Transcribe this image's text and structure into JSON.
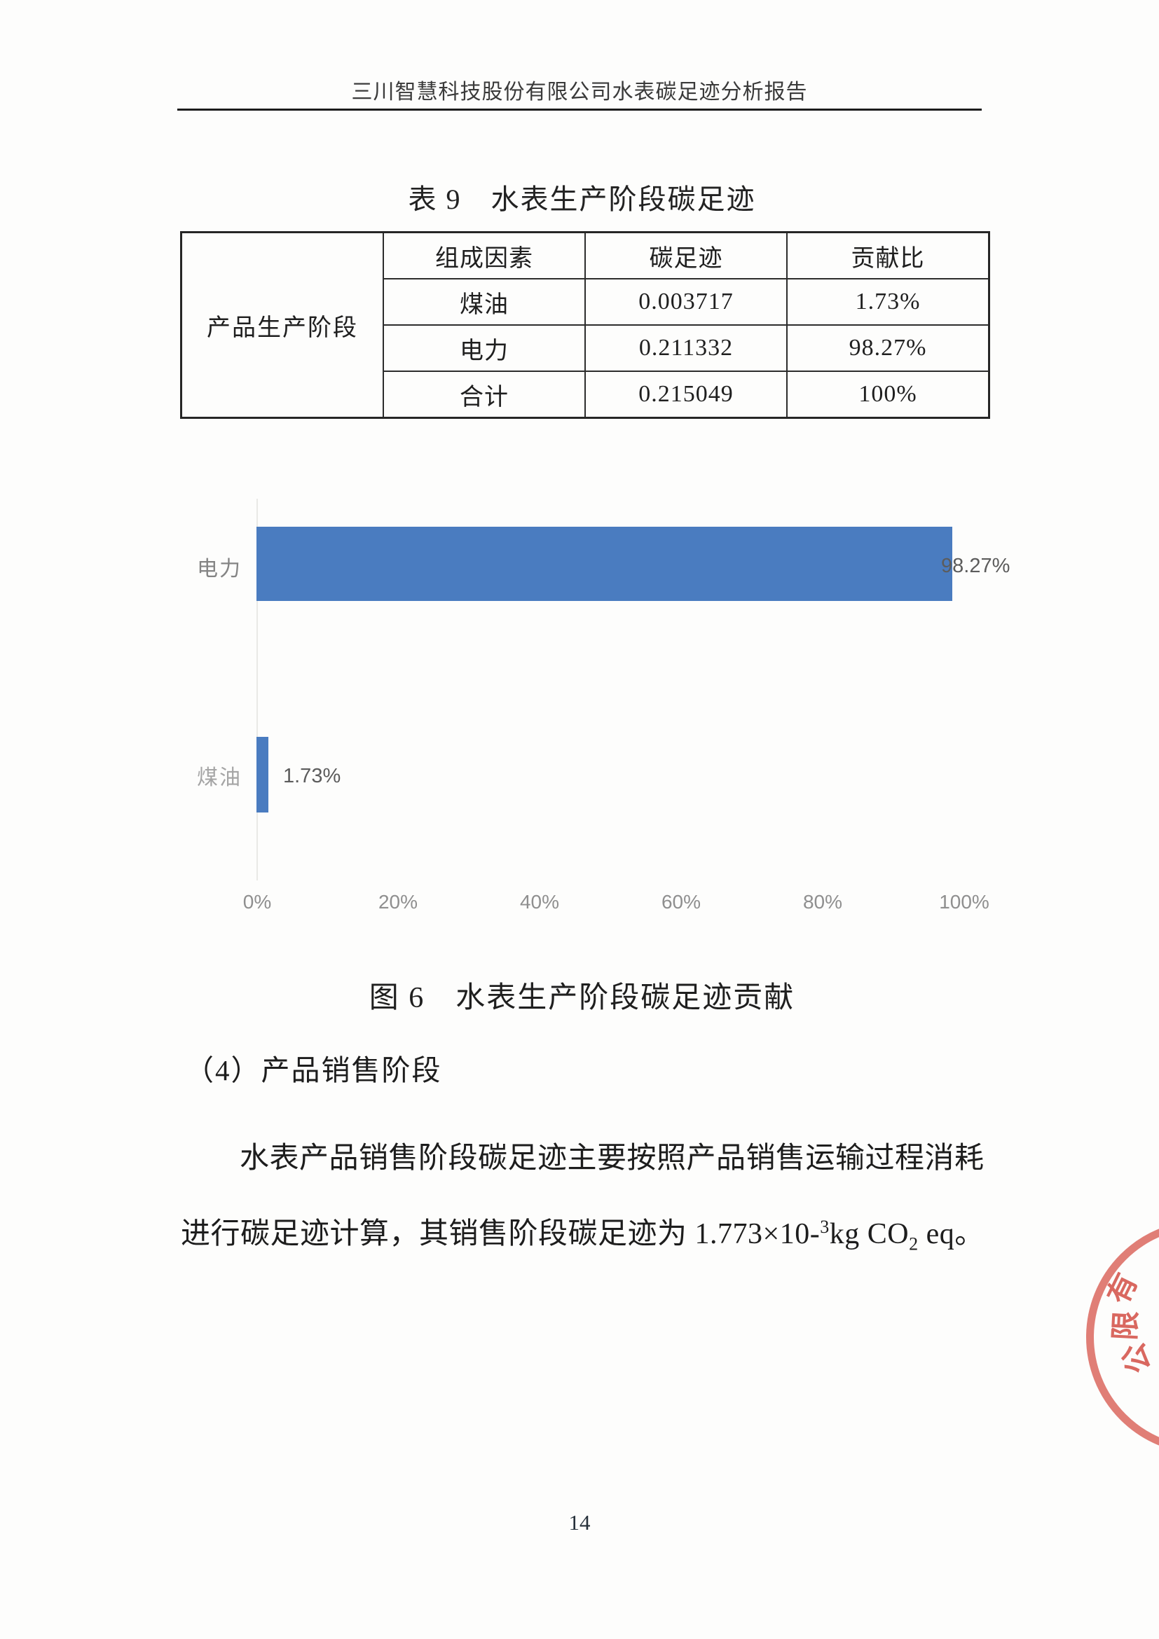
{
  "header": {
    "title": "三川智慧科技股份有限公司水表碳足迹分析报告"
  },
  "table": {
    "caption": "表 9　水表生产阶段碳足迹",
    "stage_label": "产品生产阶段",
    "headers": [
      "组成因素",
      "碳足迹",
      "贡献比"
    ],
    "rows": [
      {
        "factor": "煤油",
        "footprint": "0.003717",
        "share": "1.73%"
      },
      {
        "factor": "电力",
        "footprint": "0.211332",
        "share": "98.27%"
      },
      {
        "factor": "合计",
        "footprint": "0.215049",
        "share": "100%"
      }
    ]
  },
  "chart_data": {
    "type": "bar",
    "orientation": "horizontal",
    "categories": [
      "电力",
      "煤油"
    ],
    "values": [
      98.27,
      1.73
    ],
    "data_labels": [
      "98.27%",
      "1.73%"
    ],
    "x_ticks": [
      "0%",
      "20%",
      "40%",
      "60%",
      "80%",
      "100%"
    ],
    "xlim": [
      0,
      100
    ],
    "grid": false,
    "legend": false,
    "bar_color": "#4a7cc0",
    "title": "图 6　水表生产阶段碳足迹贡献"
  },
  "figure": {
    "caption": "图 6　水表生产阶段碳足迹贡献"
  },
  "section": {
    "heading": "（4）产品销售阶段"
  },
  "paragraph": {
    "line1": "水表产品销售阶段碳足迹主要按照产品销售运输过程消耗",
    "line2_prefix": "进行碳足迹计算，其销售阶段碳足迹为 ",
    "formula": {
      "coeff": "1.773×10-",
      "exp": "3",
      "unit": "kg CO",
      "sub": "2",
      "suffix": " eq。"
    }
  },
  "stamp": {
    "chars": [
      "有",
      "限",
      "公"
    ],
    "color": "#d55046"
  },
  "footer": {
    "page_number": "14"
  }
}
